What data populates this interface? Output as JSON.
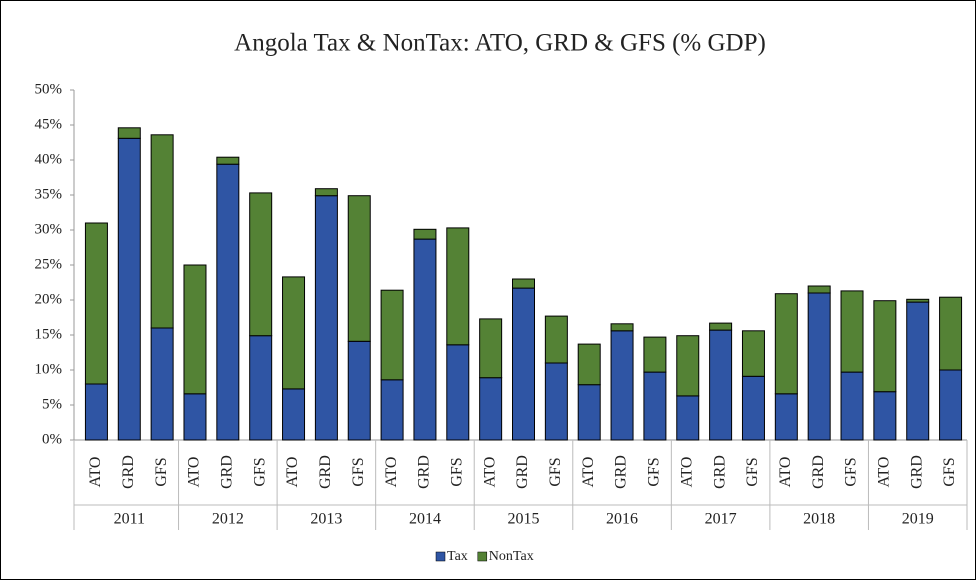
{
  "chart_data": {
    "type": "stacked_bar",
    "title": "Angola Tax & NonTax: ATO, GRD & GFS (% GDP)",
    "categories": [
      "ATO",
      "GRD",
      "GFS",
      "ATO",
      "GRD",
      "GFS",
      "ATO",
      "GRD",
      "GFS",
      "ATO",
      "GRD",
      "GFS",
      "ATO",
      "GRD",
      "GFS",
      "ATO",
      "GRD",
      "GFS",
      "ATO",
      "GRD",
      "GFS",
      "ATO",
      "GRD",
      "GFS",
      "ATO",
      "GRD",
      "GFS"
    ],
    "category_groups": [
      "2011",
      "2012",
      "2013",
      "2014",
      "2015",
      "2016",
      "2017",
      "2018",
      "2019"
    ],
    "series": [
      {
        "name": "Tax",
        "color": "#2f55a4",
        "values": [
          8.0,
          43.1,
          16.0,
          6.6,
          39.4,
          14.9,
          7.3,
          34.9,
          14.1,
          8.6,
          28.7,
          13.6,
          8.9,
          21.7,
          11.0,
          7.9,
          15.6,
          9.7,
          6.3,
          15.7,
          9.1,
          6.6,
          21.0,
          9.7,
          6.9,
          19.7,
          10.0
        ]
      },
      {
        "name": "NonTax",
        "color": "#548235",
        "values": [
          23.0,
          1.5,
          27.6,
          18.4,
          1.0,
          20.4,
          16.0,
          1.0,
          20.8,
          12.8,
          1.4,
          16.7,
          8.4,
          1.3,
          6.7,
          5.8,
          1.0,
          5.0,
          8.6,
          1.0,
          6.5,
          14.3,
          1.0,
          11.6,
          13.0,
          0.4,
          10.4
        ]
      }
    ],
    "ylim": [
      0,
      50
    ],
    "yticks": [
      {
        "value": 0,
        "label": "0%"
      },
      {
        "value": 5,
        "label": "5%"
      },
      {
        "value": 10,
        "label": "10%"
      },
      {
        "value": 15,
        "label": "15%"
      },
      {
        "value": 20,
        "label": "20%"
      },
      {
        "value": 25,
        "label": "25%"
      },
      {
        "value": 30,
        "label": "30%"
      },
      {
        "value": 35,
        "label": "35%"
      },
      {
        "value": 40,
        "label": "40%"
      },
      {
        "value": 45,
        "label": "45%"
      },
      {
        "value": 50,
        "label": "50%"
      }
    ],
    "grid": false,
    "legend": "bottom"
  }
}
